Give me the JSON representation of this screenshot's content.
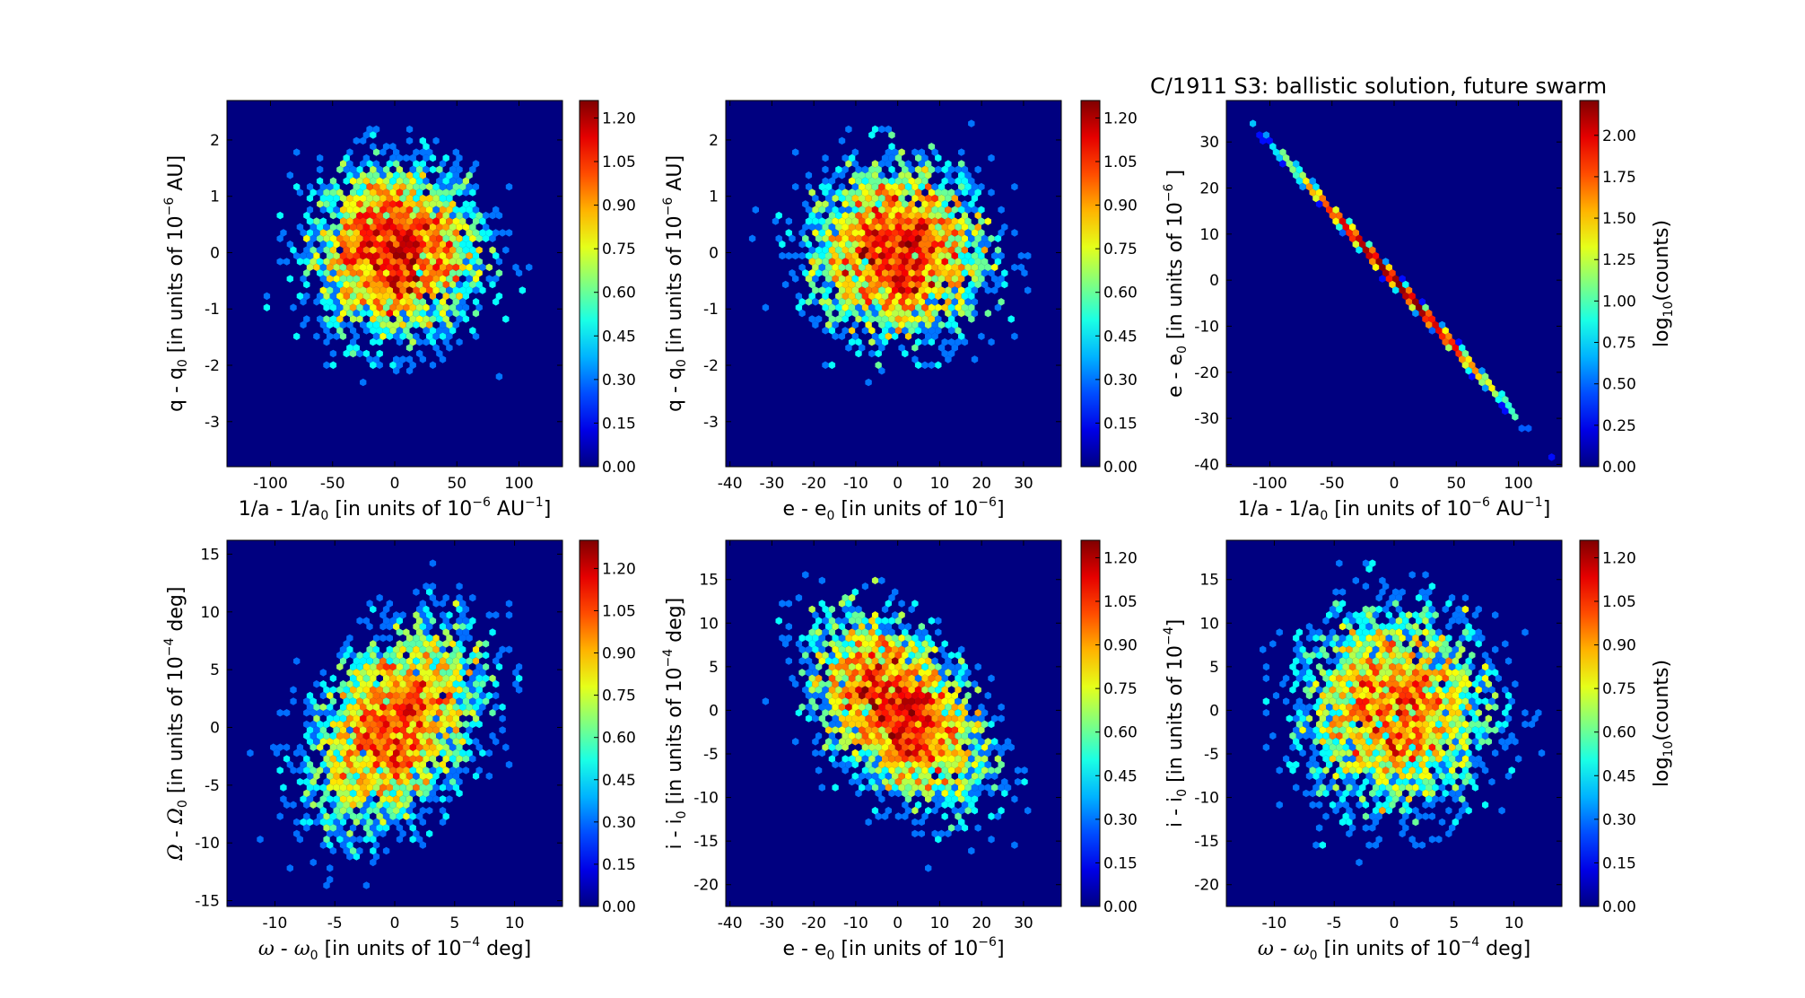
{
  "colors": {
    "background": "#000080",
    "colormap": "jet"
  },
  "chart_data": [
    {
      "type": "heatmap",
      "subtype": "hexbin",
      "title": "",
      "xlabel": [
        {
          "text": "1/a - 1/a",
          "style": ""
        },
        {
          "text": "0",
          "style": "sub"
        },
        {
          "text": " [in units of 10",
          "style": ""
        },
        {
          "text": "−6",
          "style": "sup"
        },
        {
          "text": " AU",
          "style": ""
        },
        {
          "text": "−1",
          "style": "sup"
        },
        {
          "text": "]",
          "style": ""
        }
      ],
      "ylabel": [
        {
          "text": "q - q",
          "style": ""
        },
        {
          "text": "0",
          "style": "sub"
        },
        {
          "text": " [in units of 10",
          "style": ""
        },
        {
          "text": "−6",
          "style": "sup"
        },
        {
          "text": " AU]",
          "style": ""
        }
      ],
      "xlim": [
        -135,
        135
      ],
      "ylim": [
        -3.8,
        2.7
      ],
      "xticks": [
        -100,
        -50,
        0,
        50,
        100
      ],
      "yticks": [
        -3,
        -2,
        -1,
        0,
        1,
        2
      ],
      "colorbar": {
        "range": [
          0,
          1.26
        ],
        "ticks": [
          "0.00",
          "0.15",
          "0.30",
          "0.45",
          "0.60",
          "0.75",
          "0.90",
          "1.05",
          "1.20"
        ],
        "label": []
      },
      "distribution": {
        "x_center": 0,
        "y_center": 0,
        "x_spread": 38,
        "y_spread": 0.85,
        "correlation": 0.0
      }
    },
    {
      "type": "heatmap",
      "subtype": "hexbin",
      "title": "",
      "xlabel": [
        {
          "text": "e - e",
          "style": ""
        },
        {
          "text": "0",
          "style": "sub"
        },
        {
          "text": " [in units of 10",
          "style": ""
        },
        {
          "text": "−6",
          "style": "sup"
        },
        {
          "text": "]",
          "style": ""
        }
      ],
      "ylabel": [
        {
          "text": "q - q",
          "style": ""
        },
        {
          "text": "0",
          "style": "sub"
        },
        {
          "text": " [in units of 10",
          "style": ""
        },
        {
          "text": "−6",
          "style": "sup"
        },
        {
          "text": " AU]",
          "style": ""
        }
      ],
      "xlim": [
        -41,
        39
      ],
      "ylim": [
        -3.8,
        2.7
      ],
      "xticks": [
        -40,
        -30,
        -20,
        -10,
        0,
        10,
        20,
        30
      ],
      "yticks": [
        -3,
        -2,
        -1,
        0,
        1,
        2
      ],
      "colorbar": {
        "range": [
          0,
          1.26
        ],
        "ticks": [
          "0.00",
          "0.15",
          "0.30",
          "0.45",
          "0.60",
          "0.75",
          "0.90",
          "1.05",
          "1.20"
        ],
        "label": []
      },
      "distribution": {
        "x_center": 0,
        "y_center": 0,
        "x_spread": 11.5,
        "y_spread": 0.85,
        "correlation": 0.0
      }
    },
    {
      "type": "heatmap",
      "subtype": "hexbin",
      "title": "C/1911 S3:  ballistic solution, future swarm",
      "xlabel": [
        {
          "text": "1/a - 1/a",
          "style": ""
        },
        {
          "text": "0",
          "style": "sub"
        },
        {
          "text": " [in units of 10",
          "style": ""
        },
        {
          "text": "−6",
          "style": "sup"
        },
        {
          "text": " AU",
          "style": ""
        },
        {
          "text": "−1",
          "style": "sup"
        },
        {
          "text": "]",
          "style": ""
        }
      ],
      "ylabel": [
        {
          "text": "e - e",
          "style": ""
        },
        {
          "text": "0",
          "style": "sub"
        },
        {
          "text": " [in units of 10",
          "style": ""
        },
        {
          "text": "−6",
          "style": "sup"
        },
        {
          "text": " ]",
          "style": ""
        }
      ],
      "xlim": [
        -135,
        135
      ],
      "ylim": [
        -40.5,
        39
      ],
      "xticks": [
        -100,
        -50,
        0,
        50,
        100
      ],
      "yticks": [
        -40,
        -30,
        -20,
        -10,
        0,
        10,
        20,
        30
      ],
      "colorbar": {
        "range": [
          0,
          2.21
        ],
        "ticks": [
          "0.00",
          "0.25",
          "0.50",
          "0.75",
          "1.00",
          "1.25",
          "1.50",
          "1.75",
          "2.00"
        ],
        "label": [
          {
            "text": "log",
            "style": ""
          },
          {
            "text": "10",
            "style": "sub"
          },
          {
            "text": "(counts)",
            "style": ""
          }
        ]
      },
      "distribution": {
        "x_center": 0,
        "y_center": 0,
        "x_spread": 38,
        "y_spread": 11.5,
        "correlation": -0.999
      }
    },
    {
      "type": "heatmap",
      "subtype": "hexbin",
      "title": "",
      "xlabel": [
        {
          "text": "ω",
          "style": "math"
        },
        {
          "text": " - ",
          "style": ""
        },
        {
          "text": "ω",
          "style": "math"
        },
        {
          "text": "0",
          "style": "sub"
        },
        {
          "text": " [in units of 10",
          "style": ""
        },
        {
          "text": "−4",
          "style": "sup"
        },
        {
          "text": " deg]",
          "style": ""
        }
      ],
      "ylabel": [
        {
          "text": "Ω",
          "style": "math"
        },
        {
          "text": " - ",
          "style": ""
        },
        {
          "text": "Ω",
          "style": "math"
        },
        {
          "text": "0",
          "style": "sub"
        },
        {
          "text": " [in units of 10",
          "style": ""
        },
        {
          "text": "−4",
          "style": "sup"
        },
        {
          "text": " deg]",
          "style": ""
        }
      ],
      "xlim": [
        -14,
        14
      ],
      "ylim": [
        -15.5,
        16.2
      ],
      "xticks": [
        -10,
        -5,
        0,
        5,
        10
      ],
      "yticks": [
        -15,
        -10,
        -5,
        0,
        5,
        10,
        15
      ],
      "colorbar": {
        "range": [
          0,
          1.3
        ],
        "ticks": [
          "0.00",
          "0.15",
          "0.30",
          "0.45",
          "0.60",
          "0.75",
          "0.90",
          "1.05",
          "1.20"
        ],
        "label": []
      },
      "distribution": {
        "x_center": 0,
        "y_center": 0,
        "x_spread": 4,
        "y_spread": 5,
        "correlation": 0.4
      }
    },
    {
      "type": "heatmap",
      "subtype": "hexbin",
      "title": "",
      "xlabel": [
        {
          "text": "e - e",
          "style": ""
        },
        {
          "text": "0",
          "style": "sub"
        },
        {
          "text": " [in units of 10",
          "style": ""
        },
        {
          "text": "−6",
          "style": "sup"
        },
        {
          "text": "]",
          "style": ""
        }
      ],
      "ylabel": [
        {
          "text": "i - i",
          "style": ""
        },
        {
          "text": "0",
          "style": "sub"
        },
        {
          "text": " [in units of 10",
          "style": ""
        },
        {
          "text": "−4",
          "style": "sup"
        },
        {
          "text": " deg]",
          "style": ""
        }
      ],
      "xlim": [
        -41,
        39
      ],
      "ylim": [
        -22.5,
        19.5
      ],
      "xticks": [
        -40,
        -30,
        -20,
        -10,
        0,
        10,
        20,
        30
      ],
      "yticks": [
        -20,
        -15,
        -10,
        -5,
        0,
        5,
        10,
        15
      ],
      "colorbar": {
        "range": [
          0,
          1.26
        ],
        "ticks": [
          "0.00",
          "0.15",
          "0.30",
          "0.45",
          "0.60",
          "0.75",
          "0.90",
          "1.05",
          "1.20"
        ],
        "label": []
      },
      "distribution": {
        "x_center": 0,
        "y_center": 0,
        "x_spread": 11.5,
        "y_spread": 6,
        "correlation": -0.45
      }
    },
    {
      "type": "heatmap",
      "subtype": "hexbin",
      "title": "",
      "xlabel": [
        {
          "text": "ω",
          "style": "math"
        },
        {
          "text": " - ",
          "style": ""
        },
        {
          "text": "ω",
          "style": "math"
        },
        {
          "text": "0",
          "style": "sub"
        },
        {
          "text": " [in units of 10",
          "style": ""
        },
        {
          "text": "−4",
          "style": "sup"
        },
        {
          "text": " deg]",
          "style": ""
        }
      ],
      "ylabel": [
        {
          "text": "i - i",
          "style": ""
        },
        {
          "text": "0",
          "style": "sub"
        },
        {
          "text": " [in units of 10",
          "style": ""
        },
        {
          "text": "−4",
          "style": "sup"
        },
        {
          "text": "]",
          "style": ""
        }
      ],
      "xlim": [
        -14,
        14
      ],
      "ylim": [
        -22.5,
        19.5
      ],
      "xticks": [
        -10,
        -5,
        0,
        5,
        10
      ],
      "yticks": [
        -20,
        -15,
        -10,
        -5,
        0,
        5,
        10,
        15
      ],
      "colorbar": {
        "range": [
          0,
          1.26
        ],
        "ticks": [
          "0.00",
          "0.15",
          "0.30",
          "0.45",
          "0.60",
          "0.75",
          "0.90",
          "1.05",
          "1.20"
        ],
        "label": [
          {
            "text": "log",
            "style": ""
          },
          {
            "text": "10",
            "style": "sub"
          },
          {
            "text": "(counts)",
            "style": ""
          }
        ]
      },
      "distribution": {
        "x_center": 0,
        "y_center": 0,
        "x_spread": 4.5,
        "y_spread": 6.5,
        "correlation": 0.0
      }
    }
  ]
}
